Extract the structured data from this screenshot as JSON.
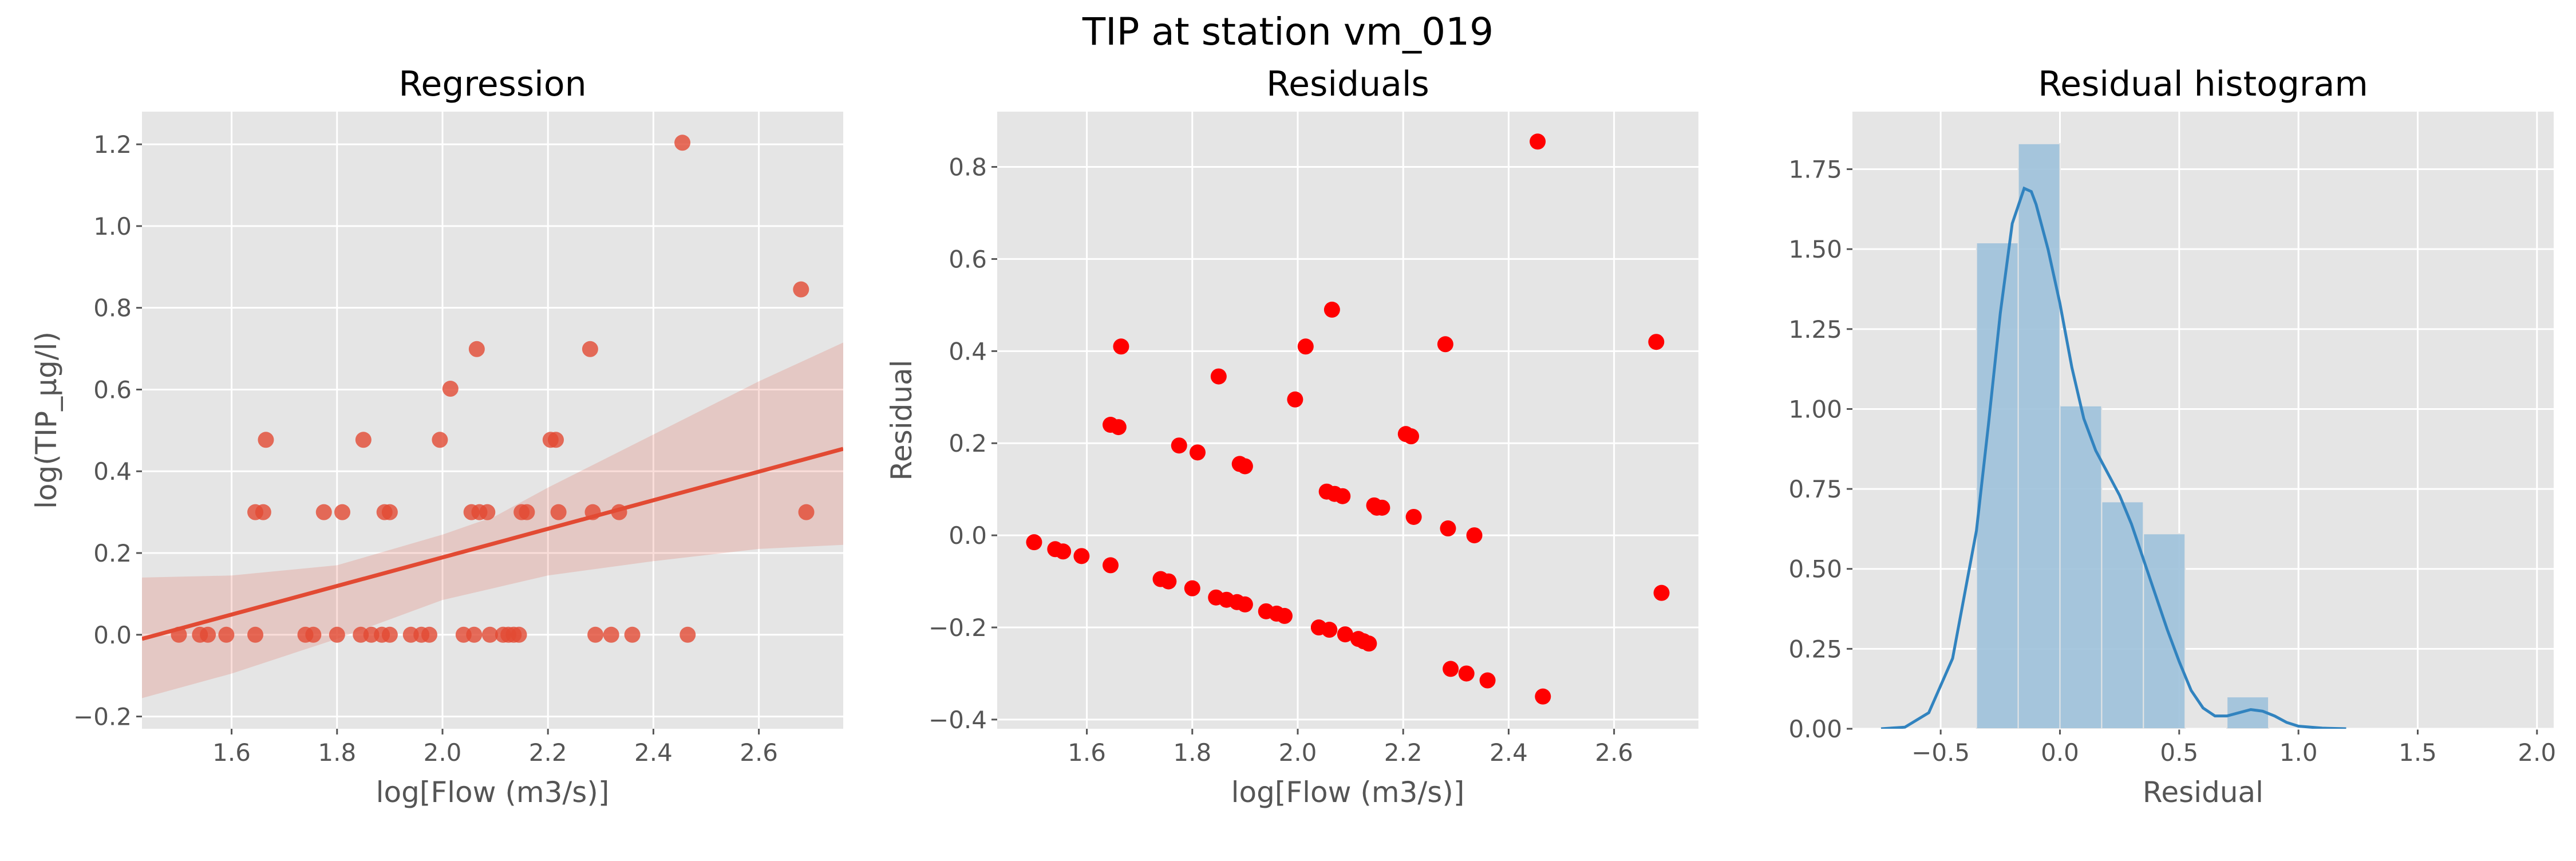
{
  "figure": {
    "suptitle": "TIP at station vm_019"
  },
  "chart_data": [
    {
      "type": "scatter",
      "title": "Regression",
      "xlabel": "log[Flow (m3/s)]",
      "ylabel": "log(TIP_μg/l)",
      "xlim": [
        1.43,
        2.76
      ],
      "ylim": [
        -0.23,
        1.28
      ],
      "xticks": [
        1.6,
        1.8,
        2.0,
        2.2,
        2.4,
        2.6
      ],
      "yticks": [
        -0.2,
        0.0,
        0.2,
        0.4,
        0.6,
        0.8,
        1.0,
        1.2
      ],
      "xtick_labels": [
        "1.6",
        "1.8",
        "2.0",
        "2.2",
        "2.4",
        "2.6"
      ],
      "ytick_labels": [
        "−0.2",
        "0.0",
        "0.2",
        "0.4",
        "0.6",
        "0.8",
        "1.0",
        "1.2"
      ],
      "points": [
        [
          1.5,
          0.0
        ],
        [
          1.54,
          0.0
        ],
        [
          1.555,
          0.0
        ],
        [
          1.59,
          0.0
        ],
        [
          1.645,
          0.0
        ],
        [
          1.645,
          0.3
        ],
        [
          1.66,
          0.3
        ],
        [
          1.665,
          0.477
        ],
        [
          1.74,
          0.0
        ],
        [
          1.755,
          0.0
        ],
        [
          1.775,
          0.3
        ],
        [
          1.8,
          0.0
        ],
        [
          1.81,
          0.3
        ],
        [
          1.845,
          0.0
        ],
        [
          1.85,
          0.477
        ],
        [
          1.865,
          0.0
        ],
        [
          1.885,
          0.0
        ],
        [
          1.89,
          0.3
        ],
        [
          1.9,
          0.3
        ],
        [
          1.9,
          0.0
        ],
        [
          1.94,
          0.0
        ],
        [
          1.96,
          0.0
        ],
        [
          1.975,
          0.0
        ],
        [
          1.995,
          0.477
        ],
        [
          2.015,
          0.602
        ],
        [
          2.04,
          0.0
        ],
        [
          2.055,
          0.3
        ],
        [
          2.06,
          0.0
        ],
        [
          2.065,
          0.699
        ],
        [
          2.07,
          0.3
        ],
        [
          2.085,
          0.3
        ],
        [
          2.09,
          0.0
        ],
        [
          2.115,
          0.0
        ],
        [
          2.125,
          0.0
        ],
        [
          2.135,
          0.0
        ],
        [
          2.145,
          0.0
        ],
        [
          2.15,
          0.3
        ],
        [
          2.16,
          0.3
        ],
        [
          2.205,
          0.477
        ],
        [
          2.215,
          0.477
        ],
        [
          2.22,
          0.3
        ],
        [
          2.28,
          0.699
        ],
        [
          2.285,
          0.3
        ],
        [
          2.29,
          0.0
        ],
        [
          2.32,
          0.0
        ],
        [
          2.335,
          0.3
        ],
        [
          2.36,
          0.0
        ],
        [
          2.455,
          1.204
        ],
        [
          2.465,
          0.0
        ],
        [
          2.68,
          0.845
        ],
        [
          2.69,
          0.3
        ]
      ],
      "regression_line": {
        "x": [
          1.43,
          2.76
        ],
        "y": [
          -0.01,
          0.455
        ]
      },
      "confidence_band": {
        "x": [
          1.43,
          1.6,
          1.8,
          2.0,
          2.1,
          2.2,
          2.4,
          2.6,
          2.76
        ],
        "upper": [
          0.14,
          0.145,
          0.17,
          0.245,
          0.29,
          0.36,
          0.49,
          0.62,
          0.715
        ],
        "lower": [
          -0.155,
          -0.095,
          -0.01,
          0.085,
          0.115,
          0.145,
          0.18,
          0.21,
          0.22
        ]
      },
      "colors": {
        "points": "#E24A33",
        "line": "#E24A33",
        "band": "#E24A33"
      }
    },
    {
      "type": "scatter",
      "title": "Residuals",
      "xlabel": "log[Flow (m3/s)]",
      "ylabel": "Residual",
      "xlim": [
        1.43,
        2.76
      ],
      "ylim": [
        -0.42,
        0.92
      ],
      "xticks": [
        1.6,
        1.8,
        2.0,
        2.2,
        2.4,
        2.6
      ],
      "yticks": [
        -0.4,
        -0.2,
        0.0,
        0.2,
        0.4,
        0.6,
        0.8
      ],
      "xtick_labels": [
        "1.6",
        "1.8",
        "2.0",
        "2.2",
        "2.4",
        "2.6"
      ],
      "ytick_labels": [
        "−0.4",
        "−0.2",
        "0.0",
        "0.2",
        "0.4",
        "0.6",
        "0.8"
      ],
      "points": [
        [
          1.5,
          -0.015
        ],
        [
          1.54,
          -0.03
        ],
        [
          1.555,
          -0.035
        ],
        [
          1.59,
          -0.045
        ],
        [
          1.645,
          -0.065
        ],
        [
          1.645,
          0.24
        ],
        [
          1.66,
          0.235
        ],
        [
          1.665,
          0.41
        ],
        [
          1.74,
          -0.095
        ],
        [
          1.755,
          -0.1
        ],
        [
          1.775,
          0.195
        ],
        [
          1.8,
          -0.115
        ],
        [
          1.81,
          0.18
        ],
        [
          1.845,
          -0.135
        ],
        [
          1.85,
          0.345
        ],
        [
          1.865,
          -0.14
        ],
        [
          1.885,
          -0.145
        ],
        [
          1.89,
          0.155
        ],
        [
          1.9,
          0.15
        ],
        [
          1.9,
          -0.15
        ],
        [
          1.94,
          -0.165
        ],
        [
          1.96,
          -0.17
        ],
        [
          1.975,
          -0.175
        ],
        [
          1.995,
          0.295
        ],
        [
          2.015,
          0.41
        ],
        [
          2.04,
          -0.2
        ],
        [
          2.055,
          0.095
        ],
        [
          2.06,
          -0.205
        ],
        [
          2.065,
          0.49
        ],
        [
          2.07,
          0.09
        ],
        [
          2.085,
          0.085
        ],
        [
          2.09,
          -0.215
        ],
        [
          2.115,
          -0.225
        ],
        [
          2.125,
          -0.23
        ],
        [
          2.135,
          -0.235
        ],
        [
          2.145,
          0.065
        ],
        [
          2.15,
          0.06
        ],
        [
          2.16,
          0.06
        ],
        [
          2.205,
          0.22
        ],
        [
          2.215,
          0.215
        ],
        [
          2.22,
          0.04
        ],
        [
          2.28,
          0.415
        ],
        [
          2.285,
          0.015
        ],
        [
          2.29,
          -0.29
        ],
        [
          2.32,
          -0.3
        ],
        [
          2.335,
          0.0
        ],
        [
          2.36,
          -0.315
        ],
        [
          2.455,
          0.855
        ],
        [
          2.465,
          -0.35
        ],
        [
          2.68,
          0.42
        ],
        [
          2.69,
          -0.125
        ]
      ],
      "colors": {
        "points": "#FF0000"
      }
    },
    {
      "type": "histogram",
      "title": "Residual histogram",
      "xlabel": "Residual",
      "ylabel": "",
      "xlim": [
        -0.87,
        2.07
      ],
      "ylim": [
        0,
        1.93
      ],
      "xticks": [
        -0.5,
        0.0,
        0.5,
        1.0,
        1.5,
        2.0
      ],
      "yticks": [
        0.0,
        0.25,
        0.5,
        0.75,
        1.0,
        1.25,
        1.5,
        1.75
      ],
      "xtick_labels": [
        "−0.5",
        "0.0",
        "0.5",
        "1.0",
        "1.5",
        "2.0"
      ],
      "ytick_labels": [
        "0.00",
        "0.25",
        "0.50",
        "0.75",
        "1.00",
        "1.25",
        "1.50",
        "1.75"
      ],
      "bins": [
        {
          "x0": -0.35,
          "x1": -0.175,
          "density": 1.52
        },
        {
          "x0": -0.175,
          "x1": 0.0,
          "density": 1.83
        },
        {
          "x0": 0.0,
          "x1": 0.175,
          "density": 1.01
        },
        {
          "x0": 0.175,
          "x1": 0.35,
          "density": 0.71
        },
        {
          "x0": 0.35,
          "x1": 0.525,
          "density": 0.61
        },
        {
          "x0": 0.525,
          "x1": 0.7,
          "density": 0.0
        },
        {
          "x0": 0.7,
          "x1": 0.875,
          "density": 0.1
        }
      ],
      "kde": {
        "x": [
          -0.75,
          -0.65,
          -0.55,
          -0.45,
          -0.35,
          -0.3,
          -0.25,
          -0.2,
          -0.15,
          -0.12,
          -0.1,
          -0.05,
          0.0,
          0.05,
          0.1,
          0.15,
          0.2,
          0.25,
          0.3,
          0.35,
          0.4,
          0.45,
          0.5,
          0.55,
          0.6,
          0.65,
          0.7,
          0.75,
          0.8,
          0.85,
          0.9,
          0.95,
          1.0,
          1.1,
          1.2
        ],
        "y": [
          0.0,
          0.005,
          0.05,
          0.22,
          0.62,
          0.95,
          1.3,
          1.58,
          1.69,
          1.68,
          1.64,
          1.5,
          1.33,
          1.13,
          0.97,
          0.87,
          0.8,
          0.73,
          0.64,
          0.53,
          0.42,
          0.31,
          0.21,
          0.12,
          0.065,
          0.04,
          0.04,
          0.05,
          0.06,
          0.055,
          0.04,
          0.02,
          0.008,
          0.002,
          0.0
        ]
      },
      "colors": {
        "bars": "#9DC1DA",
        "kde": "#3183BF"
      }
    }
  ]
}
